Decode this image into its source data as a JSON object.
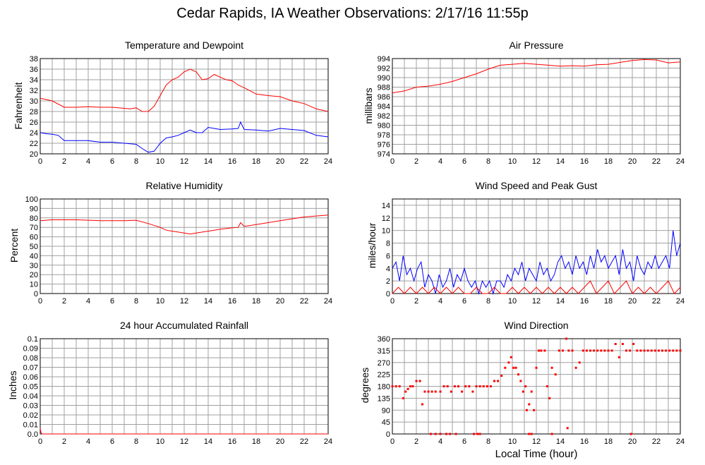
{
  "page": {
    "title": "Cedar Rapids, IA Weather Observations: 2/17/16 11:55p"
  },
  "xaxis": {
    "label": "Local Time (hour)",
    "ticks": [
      0,
      2,
      4,
      6,
      8,
      10,
      12,
      14,
      16,
      18,
      20,
      22,
      24
    ]
  },
  "colors": {
    "red": "#ff0000",
    "blue": "#0000ff",
    "grid": "#a0a0a0"
  },
  "panels": {
    "temp": {
      "title": "Temperature and Dewpoint",
      "ylabel": "Fahrenheit"
    },
    "pressure": {
      "title": "Air Pressure",
      "ylabel": "millibars"
    },
    "humidity": {
      "title": "Relative Humidity",
      "ylabel": "Percent"
    },
    "wind": {
      "title": "Wind Speed and Peak Gust",
      "ylabel": "miles/hour"
    },
    "rain": {
      "title": "24 hour Accumulated Rainfall",
      "ylabel": "Inches"
    },
    "direction": {
      "title": "Wind Direction",
      "ylabel": "degrees"
    }
  },
  "chart_data": [
    {
      "type": "line",
      "title": "Temperature and Dewpoint",
      "ylabel": "Fahrenheit",
      "ylim": [
        20,
        38
      ],
      "yticks": [
        20,
        22,
        24,
        26,
        28,
        30,
        32,
        34,
        36,
        38
      ],
      "xlim": [
        0,
        24
      ],
      "grid": true,
      "series": [
        {
          "color": "#ff0000",
          "x": [
            0,
            1,
            2,
            3,
            4,
            5,
            6,
            7,
            7.5,
            8,
            8.5,
            9,
            9.5,
            10,
            10.5,
            11,
            11.5,
            12,
            12.5,
            13,
            13.5,
            14,
            14.5,
            15,
            15.5,
            16,
            16.5,
            17,
            18,
            19,
            20,
            21,
            22,
            23,
            24
          ],
          "values": [
            30.5,
            30,
            28.8,
            28.8,
            28.9,
            28.8,
            28.8,
            28.6,
            28.5,
            28.7,
            28,
            28,
            29,
            31,
            33,
            34,
            34.5,
            35.5,
            36,
            35.5,
            34,
            34.2,
            35,
            34.5,
            34,
            33.8,
            33,
            32.5,
            31.3,
            31,
            30.8,
            30,
            29.5,
            28.5,
            28
          ]
        },
        {
          "color": "#0000ff",
          "x": [
            0,
            0.5,
            1,
            1.5,
            2,
            3,
            4,
            5,
            6,
            7,
            8,
            8.5,
            9,
            9.5,
            10,
            10.5,
            11,
            11.5,
            12,
            12.5,
            13,
            13.5,
            14,
            14.5,
            15,
            16,
            16.5,
            16.7,
            17,
            18,
            19,
            20,
            21,
            22,
            23,
            24
          ],
          "values": [
            24,
            23.8,
            23.7,
            23.5,
            22.5,
            22.5,
            22.5,
            22.2,
            22.2,
            22,
            21.8,
            21,
            20.3,
            20.5,
            22,
            23,
            23.2,
            23.5,
            24,
            24.5,
            24,
            24,
            25,
            24.8,
            24.6,
            24.7,
            24.8,
            26,
            24.6,
            24.5,
            24.3,
            24.8,
            24.6,
            24.4,
            23.5,
            23.2
          ]
        }
      ]
    },
    {
      "type": "line",
      "title": "Air Pressure",
      "ylabel": "millibars",
      "ylim": [
        974,
        994
      ],
      "yticks": [
        974,
        976,
        978,
        980,
        982,
        984,
        986,
        988,
        990,
        992,
        994
      ],
      "xlim": [
        0,
        24
      ],
      "grid": true,
      "series": [
        {
          "color": "#ff0000",
          "x": [
            0,
            1,
            2,
            3,
            4,
            5,
            6,
            7,
            8,
            9,
            10,
            11,
            12,
            13,
            14,
            15,
            16,
            17,
            18,
            19,
            20,
            21,
            22,
            23,
            24
          ],
          "values": [
            986.8,
            987.2,
            988,
            988.2,
            988.6,
            989.2,
            990,
            990.8,
            991.8,
            992.6,
            992.8,
            993,
            992.8,
            992.6,
            992.4,
            992.5,
            992.4,
            992.7,
            992.8,
            993.2,
            993.6,
            993.8,
            993.7,
            993.1,
            993.3
          ]
        }
      ]
    },
    {
      "type": "line",
      "title": "Relative Humidity",
      "ylabel": "Percent",
      "ylim": [
        0,
        100
      ],
      "yticks": [
        0,
        10,
        20,
        30,
        40,
        50,
        60,
        70,
        80,
        90,
        100
      ],
      "xlim": [
        0,
        24
      ],
      "grid": true,
      "series": [
        {
          "color": "#ff0000",
          "x": [
            0,
            1,
            2,
            3,
            4,
            5,
            6,
            7,
            8,
            9,
            10,
            10.5,
            11,
            11.5,
            12,
            12.5,
            13,
            13.5,
            14,
            15,
            16,
            16.5,
            16.7,
            17,
            18,
            19,
            20,
            21,
            22,
            23,
            24
          ],
          "values": [
            77,
            78,
            78,
            78,
            77.5,
            77,
            77,
            77,
            77.5,
            74,
            70,
            67,
            66,
            65,
            64,
            63,
            64,
            65,
            66,
            68,
            69.5,
            70,
            75,
            71,
            73,
            75,
            77,
            79,
            81,
            82,
            83
          ]
        }
      ]
    },
    {
      "type": "line",
      "title": "Wind Speed and Peak Gust",
      "ylabel": "miles/hour",
      "ylim": [
        0,
        15
      ],
      "yticks": [
        0,
        2,
        4,
        6,
        8,
        10,
        12,
        14
      ],
      "xlim": [
        0,
        24
      ],
      "grid": true,
      "series": [
        {
          "color": "#0000ff",
          "x": [
            0,
            0.3,
            0.6,
            0.9,
            1.2,
            1.5,
            1.8,
            2.1,
            2.4,
            2.7,
            3,
            3.3,
            3.6,
            3.9,
            4.2,
            4.5,
            4.8,
            5.1,
            5.4,
            5.7,
            6,
            6.3,
            6.6,
            6.9,
            7.2,
            7.5,
            7.8,
            8.1,
            8.4,
            8.7,
            9,
            9.3,
            9.6,
            9.9,
            10.2,
            10.5,
            10.8,
            11.1,
            11.4,
            11.7,
            12,
            12.3,
            12.6,
            12.9,
            13.2,
            13.5,
            13.8,
            14.1,
            14.4,
            14.7,
            15,
            15.3,
            15.6,
            15.9,
            16.2,
            16.5,
            16.8,
            17.1,
            17.4,
            17.7,
            18,
            18.3,
            18.6,
            18.9,
            19.2,
            19.5,
            19.8,
            20.1,
            20.4,
            20.7,
            21,
            21.3,
            21.6,
            21.9,
            22.2,
            22.5,
            22.8,
            23.1,
            23.4,
            23.7,
            24
          ],
          "values": [
            4,
            5,
            2,
            6,
            3,
            4,
            2,
            4,
            5,
            1,
            3,
            2,
            0,
            3,
            1,
            2,
            4,
            1,
            3,
            2,
            4,
            2,
            1,
            2,
            0,
            2,
            1,
            2,
            0,
            2,
            2,
            1,
            3,
            2,
            4,
            3,
            5,
            2,
            4,
            3,
            2,
            5,
            3,
            4,
            2,
            3,
            5,
            6,
            4,
            5,
            3,
            6,
            4,
            5,
            3,
            6,
            4,
            7,
            5,
            6,
            4,
            5,
            6,
            3,
            7,
            4,
            5,
            2,
            6,
            4,
            3,
            5,
            4,
            6,
            4,
            5,
            6,
            4,
            10,
            6,
            8
          ]
        },
        {
          "color": "#ff0000",
          "x": [
            0,
            0.5,
            1,
            1.5,
            2,
            2.5,
            3,
            3.5,
            4,
            4.5,
            5,
            5.5,
            6,
            6.5,
            7,
            7.5,
            8,
            8.5,
            9,
            9.5,
            10,
            10.5,
            11,
            11.5,
            12,
            12.5,
            13,
            13.5,
            14,
            14.5,
            15,
            15.5,
            16,
            16.5,
            17,
            17.5,
            18,
            18.5,
            19,
            19.5,
            20,
            20.5,
            21,
            21.5,
            22,
            22.5,
            23,
            23.5,
            24
          ],
          "values": [
            0,
            1,
            0,
            1,
            0,
            1,
            0,
            1,
            0,
            1,
            0,
            1,
            0,
            0,
            1,
            0,
            0,
            1,
            0,
            0,
            1,
            0,
            1,
            0,
            1,
            0,
            1,
            0,
            1,
            0,
            1,
            0,
            1,
            2,
            0,
            1,
            2,
            0,
            1,
            2,
            0,
            1,
            0,
            1,
            0,
            1,
            2,
            0,
            1
          ]
        }
      ]
    },
    {
      "type": "line",
      "title": "24 hour Accumulated Rainfall",
      "ylabel": "Inches",
      "ylim": [
        0,
        0.1
      ],
      "yticks": [
        0.0,
        0.01,
        0.02,
        0.03,
        0.04,
        0.05,
        0.06,
        0.07,
        0.08,
        0.09,
        0.1
      ],
      "ytick_labels": [
        "0.0",
        "0.01",
        "0.02",
        "0.03",
        "0.04",
        "0.05",
        "0.06",
        "0.07",
        "0.08",
        "0.09",
        "0.1"
      ],
      "xlim": [
        0,
        24
      ],
      "grid": true,
      "series": [
        {
          "color": "#ff0000",
          "x": [
            0,
            0.05,
            0.15,
            24
          ],
          "values": [
            0.006,
            0.002,
            0,
            0
          ]
        }
      ]
    },
    {
      "type": "scatter",
      "title": "Wind Direction",
      "ylabel": "degrees",
      "xlabel": "Local Time (hour)",
      "ylim": [
        0,
        360
      ],
      "yticks": [
        0,
        45,
        90,
        135,
        180,
        225,
        270,
        315,
        360
      ],
      "xlim": [
        0,
        24
      ],
      "grid": true,
      "series": [
        {
          "color": "#ff0000",
          "x": [
            0,
            0.3,
            0.6,
            0.9,
            1.1,
            1.3,
            1.5,
            1.7,
            2,
            2.3,
            2.5,
            2.7,
            3,
            3.3,
            3.6,
            4,
            4.3,
            4.6,
            4.9,
            5.2,
            5.5,
            5.8,
            6.1,
            6.4,
            6.7,
            7,
            7.3,
            7.6,
            7.9,
            8.2,
            8.5,
            8.8,
            9.1,
            9.4,
            9.7,
            9.9,
            10.1,
            10.3,
            10.5,
            10.7,
            10.9,
            11.1,
            11.2,
            11.4,
            11.6,
            11.8,
            12,
            12.2,
            12.4,
            12.7,
            12.9,
            13.1,
            13.3,
            13.6,
            13.9,
            14.2,
            14.5,
            14.7,
            15,
            15.3,
            15.6,
            15.9,
            16.2,
            16.5,
            16.8,
            17.1,
            17.4,
            17.7,
            18,
            18.3,
            18.6,
            18.9,
            19.2,
            19.5,
            19.8,
            20.1,
            20.4,
            20.7,
            21,
            21.3,
            21.6,
            21.9,
            22.2,
            22.5,
            22.8,
            23.1,
            23.4,
            23.7,
            24,
            3.2,
            3.6,
            4.0,
            4.5,
            4.8,
            5.3,
            6.8,
            7.1,
            7.3,
            11.4,
            11.6,
            13.3,
            14.6,
            19.9
          ],
          "values": [
            180,
            180,
            180,
            135,
            160,
            170,
            180,
            180,
            200,
            200,
            112,
            160,
            160,
            160,
            160,
            160,
            180,
            180,
            160,
            180,
            180,
            160,
            180,
            180,
            160,
            180,
            180,
            180,
            180,
            180,
            200,
            200,
            220,
            250,
            270,
            290,
            250,
            250,
            225,
            200,
            160,
            180,
            90,
            112,
            160,
            90,
            250,
            315,
            315,
            315,
            180,
            135,
            250,
            225,
            315,
            315,
            360,
            315,
            315,
            250,
            270,
            315,
            315,
            315,
            315,
            315,
            315,
            315,
            315,
            315,
            340,
            290,
            340,
            315,
            315,
            340,
            315,
            315,
            315,
            315,
            315,
            315,
            315,
            315,
            315,
            315,
            315,
            315,
            315,
            0,
            0,
            0,
            0,
            0,
            0,
            0,
            0,
            0,
            0,
            0,
            0,
            22,
            0
          ]
        }
      ]
    }
  ]
}
